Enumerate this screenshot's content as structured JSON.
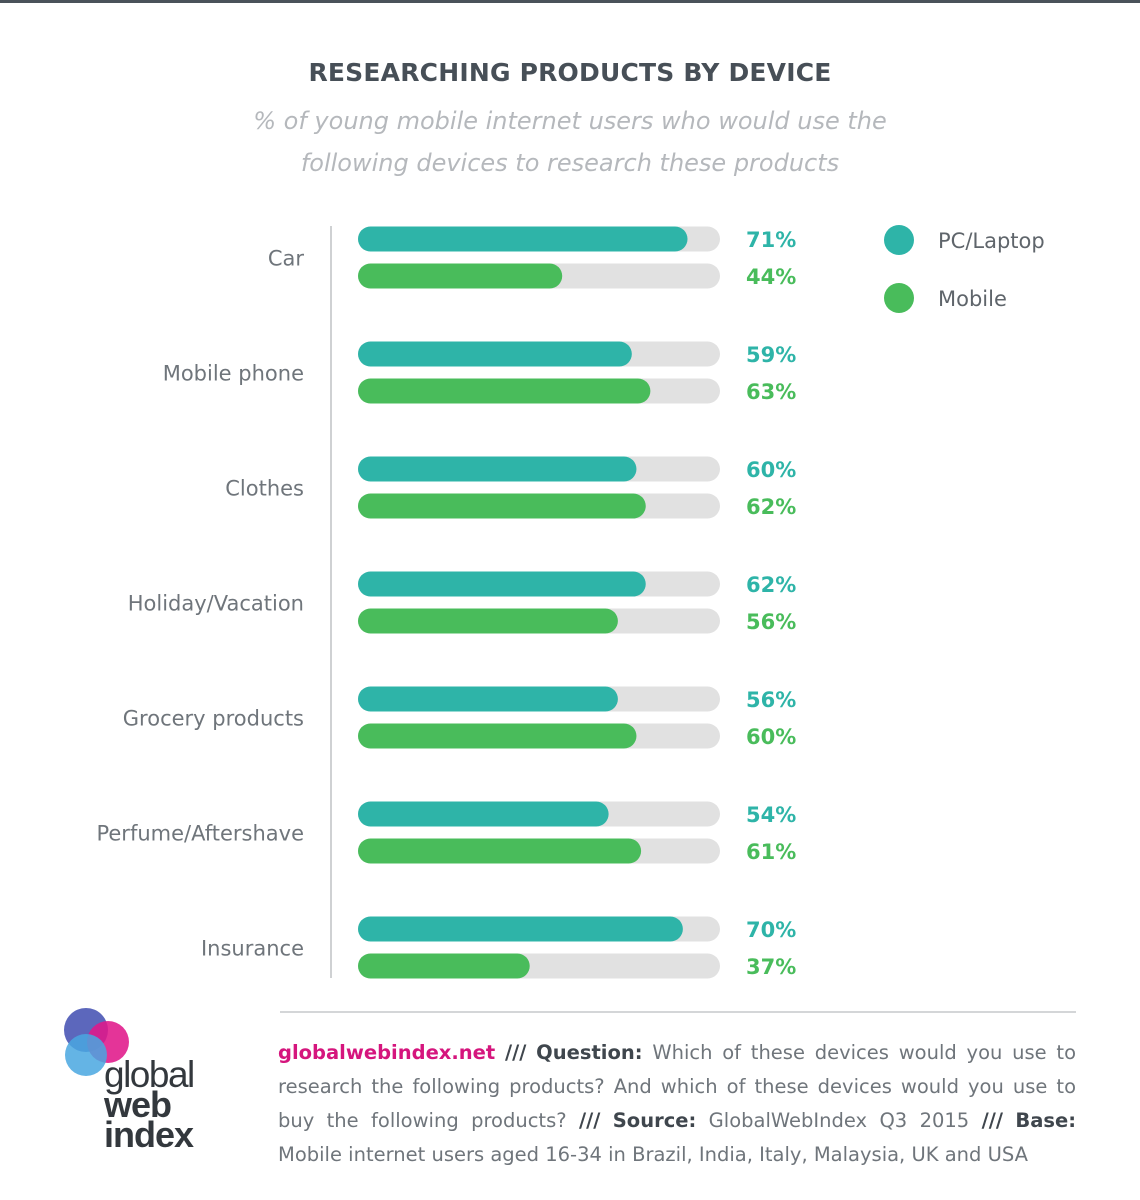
{
  "title": "RESEARCHING PRODUCTS BY DEVICE",
  "subtitle": "% of young mobile internet users who would use the following devices to research these products",
  "colors": {
    "pc": "#2eb4a8",
    "mobile": "#49bc5b",
    "track": "#e1e1e1",
    "axis": "#cfd1d3"
  },
  "chart_data": {
    "type": "bar",
    "orientation": "horizontal",
    "title": "RESEARCHING PRODUCTS BY DEVICE",
    "subtitle": "% of young mobile internet users who would use the following devices to research these products",
    "categories": [
      "Car",
      "Mobile phone",
      "Clothes",
      "Holiday/Vacation",
      "Grocery products",
      "Perfume/Aftershave",
      "Insurance"
    ],
    "series": [
      {
        "name": "PC/Laptop",
        "values": [
          71,
          59,
          60,
          62,
          56,
          54,
          70
        ],
        "labels": [
          "71%",
          "59%",
          "60%",
          "62%",
          "56%",
          "54%",
          "70%"
        ]
      },
      {
        "name": "Mobile",
        "values": [
          44,
          63,
          62,
          56,
          60,
          61,
          37
        ],
        "labels": [
          "44%",
          "63%",
          "62%",
          "56%",
          "60%",
          "61%",
          "37%"
        ]
      }
    ],
    "xlim": [
      0,
      78
    ],
    "legend_position": "top-right",
    "grid": false
  },
  "footer": {
    "site": "globalwebindex.net",
    "sep": "///",
    "question_key": "Question:",
    "question_text": "Which of these devices would you use to research the following products? And which of these devices would you use to buy the following products?",
    "source_key": "Source:",
    "source_text": "GlobalWebIndex Q3 2015",
    "base_key": "Base:",
    "base_text": "Mobile internet users aged 16-34 in Brazil, India, Italy, Malaysia, UK and USA"
  },
  "logo": {
    "line1": "global",
    "line2": "web",
    "line3": "index"
  }
}
